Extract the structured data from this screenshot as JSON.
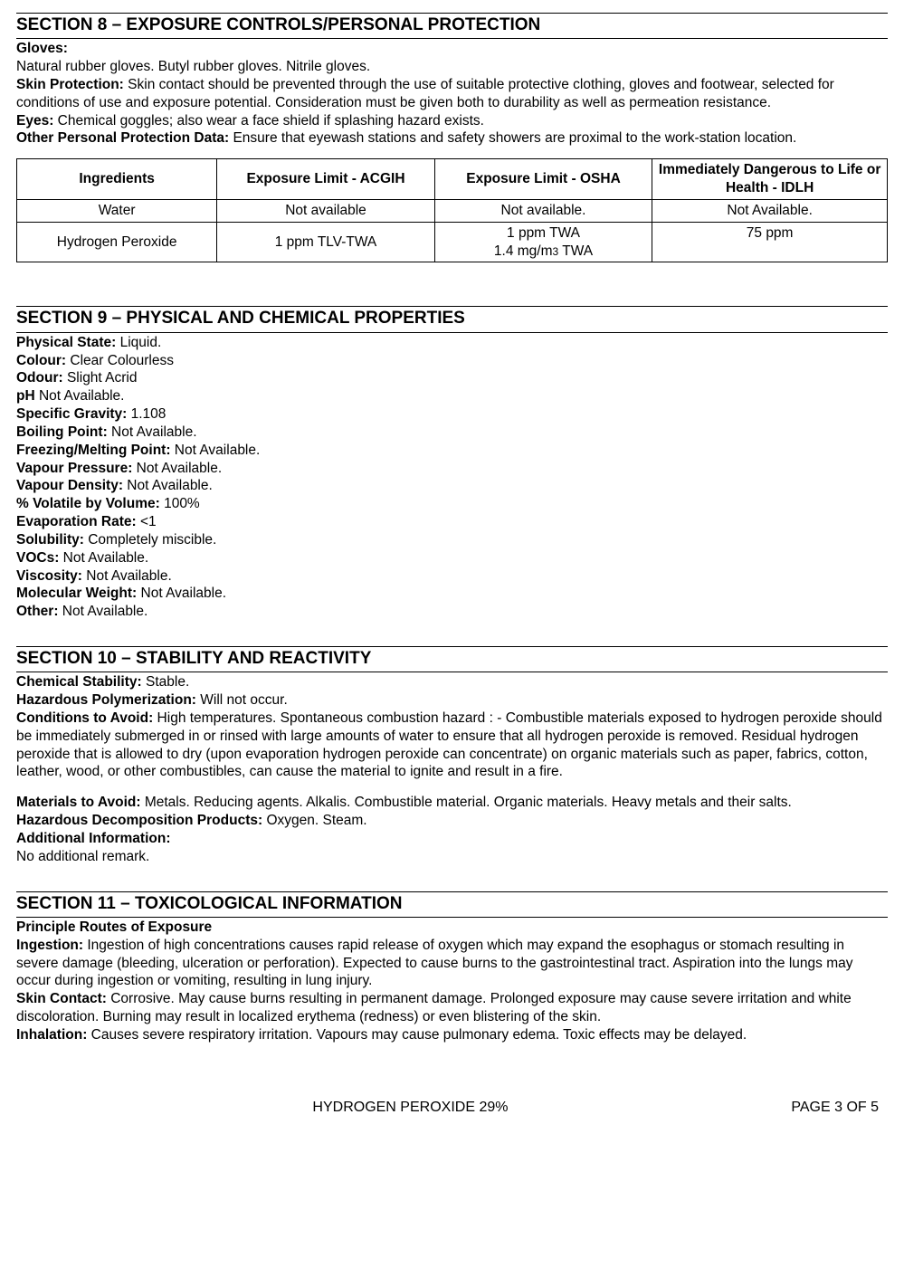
{
  "section8": {
    "title": "SECTION 8 – EXPOSURE CONTROLS/PERSONAL PROTECTION",
    "gloves_label": "Gloves:",
    "gloves_text": "Natural rubber gloves. Butyl rubber gloves. Nitrile gloves.",
    "skin_label": "Skin Protection:",
    "skin_text": " Skin contact should be prevented through the use of suitable protective clothing, gloves and footwear, selected for conditions of use and exposure potential. Consideration must be given both to durability as well as permeation resistance.",
    "eyes_label": "Eyes:",
    "eyes_text": " Chemical goggles; also wear a face shield if splashing hazard exists.",
    "other_label": "Other Personal Protection Data:",
    "other_text": " Ensure that eyewash stations and safety showers are proximal to the work-station location.",
    "table": {
      "h1": "Ingredients",
      "h2": "Exposure Limit - ACGIH",
      "h3": "Exposure Limit - OSHA",
      "h4": "Immediately Dangerous to Life or Health - IDLH",
      "r1c1": "Water",
      "r1c2": "Not available",
      "r1c3": "Not available.",
      "r1c4": "Not Available.",
      "r2c1": "Hydrogen Peroxide",
      "r2c2": "1 ppm TLV-TWA",
      "r2c3a": "1 ppm TWA",
      "r2c3b": "1.4 mg/m",
      "r2c3c": "3",
      "r2c3d": " TWA",
      "r2c4": "75 ppm"
    }
  },
  "section9": {
    "title": "SECTION 9 – PHYSICAL AND CHEMICAL PROPERTIES",
    "items": [
      {
        "label": "Physical State:",
        "val": " Liquid."
      },
      {
        "label": "Colour:",
        "val": " Clear Colourless"
      },
      {
        "label": "Odour:",
        "val": " Slight Acrid"
      },
      {
        "label": "pH",
        "val": " Not Available."
      },
      {
        "label": "Specific Gravity:",
        "val": " 1.108"
      },
      {
        "label": "Boiling Point:",
        "val": " Not Available."
      },
      {
        "label": "Freezing/Melting Point:",
        "val": " Not Available."
      },
      {
        "label": "Vapour Pressure:",
        "val": " Not Available."
      },
      {
        "label": "Vapour Density:",
        "val": " Not Available."
      },
      {
        "label": "% Volatile by Volume:",
        "val": " 100%"
      },
      {
        "label": "Evaporation Rate:",
        "val": " <1"
      },
      {
        "label": "Solubility:",
        "val": " Completely miscible."
      },
      {
        "label": "VOCs:",
        "val": " Not Available."
      },
      {
        "label": "Viscosity:",
        "val": " Not Available."
      },
      {
        "label": "Molecular Weight:",
        "val": " Not Available."
      },
      {
        "label": "Other:",
        "val": " Not Available."
      }
    ]
  },
  "section10": {
    "title": "SECTION 10 – STABILITY AND REACTIVITY",
    "cs_label": "Chemical Stability:",
    "cs_val": " Stable.",
    "hp_label": "Hazardous Polymerization:",
    "hp_val": " Will not occur.",
    "cond_label": "Conditions to Avoid:",
    "cond_val": " High temperatures. Spontaneous combustion hazard : - Combustible materials exposed to hydrogen peroxide should be immediately submerged in or rinsed with large amounts of water to ensure that all hydrogen peroxide is removed. Residual hydrogen peroxide that is allowed to dry (upon evaporation hydrogen peroxide can concentrate) on organic materials such as paper, fabrics, cotton, leather, wood, or other combustibles, can cause the material to ignite and result in a fire.",
    "mat_label": "Materials to Avoid:",
    "mat_val": " Metals. Reducing agents. Alkalis. Combustible material. Organic materials. Heavy metals and their salts.",
    "hd_label": "Hazardous Decomposition Products:",
    "hd_val": " Oxygen. Steam.",
    "ai_label": "Additional Information:",
    "ai_val": "No additional remark."
  },
  "section11": {
    "title": "SECTION 11 – TOXICOLOGICAL INFORMATION",
    "routes_label": "Principle Routes of Exposure",
    "ing_label": "Ingestion:",
    "ing_val": " Ingestion of high concentrations causes rapid release of oxygen which may expand the esophagus or stomach resulting in severe damage (bleeding, ulceration or perforation). Expected to cause burns to the gastrointestinal tract. Aspiration into the lungs may occur during ingestion or vomiting, resulting in lung injury.",
    "skin_label": "Skin Contact:",
    "skin_val": " Corrosive. May cause burns resulting in permanent damage. Prolonged exposure may cause severe irritation and white discoloration. Burning may result in localized erythema (redness) or even blistering of the skin.",
    "inh_label": "Inhalation:",
    "inh_val": " Causes severe respiratory irritation. Vapours may cause pulmonary edema. Toxic effects may be delayed."
  },
  "footer": {
    "product": "HYDROGEN PEROXIDE 29%",
    "page": "PAGE  3 OF 5"
  }
}
